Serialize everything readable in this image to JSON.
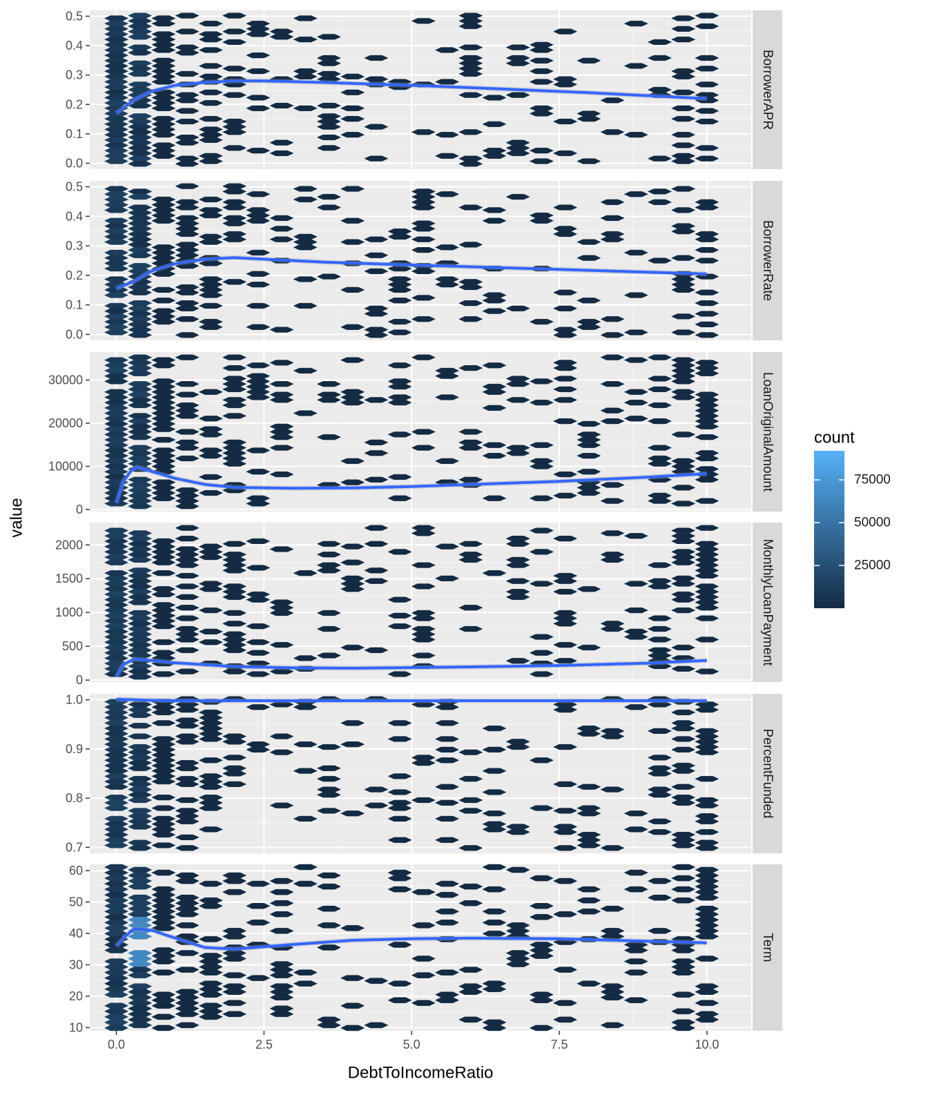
{
  "chart_data": {
    "type": "hexbin-faceted",
    "xlabel": "DebtToIncomeRatio",
    "ylabel": "value",
    "x_ticks": [
      "0.0",
      "2.5",
      "5.0",
      "7.5",
      "10.0"
    ],
    "x_tick_values": [
      0,
      2.5,
      5,
      7.5,
      10
    ],
    "xlim": [
      -0.45,
      10.75
    ],
    "legend": {
      "title": "count",
      "position": "right",
      "range": [
        0,
        92000
      ],
      "ticks": [
        "25000",
        "50000",
        "75000"
      ],
      "tick_values": [
        25000,
        50000,
        75000
      ],
      "colors": {
        "low": "#132b43",
        "high": "#56b1f7"
      }
    },
    "colors": {
      "panel_bg": "#ebebeb",
      "strip_bg": "#d9d9d9",
      "grid": "#ffffff",
      "smooth": "#3366ff",
      "hex_low": "#132b43",
      "hex_high": "#56b1f7"
    },
    "facets": [
      {
        "label": "BorrowerAPR",
        "ylim": [
          -0.02,
          0.52
        ],
        "y_ticks": [
          "0.0",
          "0.1",
          "0.2",
          "0.3",
          "0.4",
          "0.5"
        ],
        "y_tick_values": [
          0,
          0.1,
          0.2,
          0.3,
          0.4,
          0.5
        ],
        "smooth": [
          [
            0,
            0.17
          ],
          [
            0.1,
            0.185
          ],
          [
            0.3,
            0.215
          ],
          [
            0.6,
            0.245
          ],
          [
            1,
            0.265
          ],
          [
            1.5,
            0.275
          ],
          [
            2,
            0.28
          ],
          [
            2.5,
            0.28
          ],
          [
            3.5,
            0.275
          ],
          [
            5,
            0.265
          ],
          [
            6.5,
            0.253
          ],
          [
            8,
            0.24
          ],
          [
            10,
            0.22
          ]
        ]
      },
      {
        "label": "BorrowerRate",
        "ylim": [
          -0.02,
          0.52
        ],
        "y_ticks": [
          "0.0",
          "0.1",
          "0.2",
          "0.3",
          "0.4",
          "0.5"
        ],
        "y_tick_values": [
          0,
          0.1,
          0.2,
          0.3,
          0.4,
          0.5
        ],
        "smooth": [
          [
            0,
            0.155
          ],
          [
            0.3,
            0.18
          ],
          [
            0.6,
            0.215
          ],
          [
            1,
            0.24
          ],
          [
            1.5,
            0.255
          ],
          [
            2,
            0.26
          ],
          [
            2.5,
            0.255
          ],
          [
            3.5,
            0.245
          ],
          [
            5,
            0.235
          ],
          [
            7.5,
            0.22
          ],
          [
            10,
            0.205
          ]
        ]
      },
      {
        "label": "LoanOriginalAmount",
        "ylim": [
          -500,
          36500
        ],
        "y_ticks": [
          "0",
          "10000",
          "20000",
          "30000"
        ],
        "y_tick_values": [
          0,
          10000,
          20000,
          30000
        ],
        "smooth": [
          [
            0,
            1500
          ],
          [
            0.12,
            6500
          ],
          [
            0.25,
            9000
          ],
          [
            0.35,
            9800
          ],
          [
            0.6,
            8800
          ],
          [
            1,
            7200
          ],
          [
            1.5,
            5800
          ],
          [
            2,
            5100
          ],
          [
            3,
            4900
          ],
          [
            4,
            5000
          ],
          [
            5,
            5300
          ],
          [
            6,
            5800
          ],
          [
            7.5,
            6500
          ],
          [
            9,
            7500
          ],
          [
            10,
            8300
          ]
        ]
      },
      {
        "label": "MonthlyLoanPayment",
        "ylim": [
          -30,
          2330
        ],
        "y_ticks": [
          "0",
          "500",
          "1000",
          "1500",
          "2000"
        ],
        "y_tick_values": [
          0,
          500,
          1000,
          1500,
          2000
        ],
        "smooth": [
          [
            0,
            50
          ],
          [
            0.12,
            230
          ],
          [
            0.3,
            310
          ],
          [
            0.6,
            290
          ],
          [
            1,
            255
          ],
          [
            2,
            200
          ],
          [
            3,
            180
          ],
          [
            4,
            175
          ],
          [
            5,
            185
          ],
          [
            6,
            195
          ],
          [
            7.5,
            215
          ],
          [
            9,
            250
          ],
          [
            10,
            290
          ]
        ]
      },
      {
        "label": "PercentFunded",
        "ylim": [
          0.688,
          1.012
        ],
        "y_ticks": [
          "0.7",
          "0.8",
          "0.9",
          "1.0"
        ],
        "y_tick_values": [
          0.7,
          0.8,
          0.9,
          1.0
        ],
        "smooth": [
          [
            0,
            1.001
          ],
          [
            0.5,
            0.999
          ],
          [
            1,
            0.998
          ],
          [
            10,
            0.998
          ]
        ]
      },
      {
        "label": "Term",
        "ylim": [
          9,
          62
        ],
        "y_ticks": [
          "10",
          "20",
          "30",
          "40",
          "50",
          "60"
        ],
        "y_tick_values": [
          10,
          20,
          30,
          40,
          50,
          60
        ],
        "smooth": [
          [
            0,
            36
          ],
          [
            0.15,
            39
          ],
          [
            0.3,
            41.5
          ],
          [
            0.6,
            41
          ],
          [
            1,
            38.5
          ],
          [
            1.5,
            35.5
          ],
          [
            2,
            35
          ],
          [
            3,
            36.5
          ],
          [
            4,
            37.8
          ],
          [
            5,
            38.3
          ],
          [
            6,
            38.5
          ],
          [
            7.5,
            38.3
          ],
          [
            9,
            37.5
          ],
          [
            10,
            37
          ]
        ]
      }
    ]
  }
}
